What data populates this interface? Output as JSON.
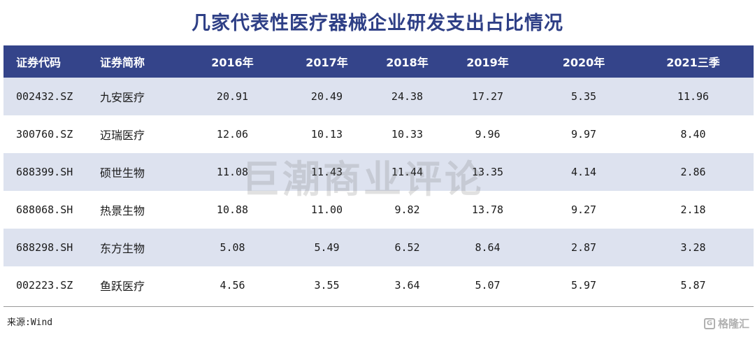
{
  "title": "几家代表性医疗器械企业研发支出占比情况",
  "watermark": "巨潮商业评论",
  "source": "来源:Wind",
  "corner_logo": {
    "mark": "G",
    "text": "格隆汇"
  },
  "chart_data": {
    "type": "table",
    "title": "几家代表性医疗器械企业研发支出占比情况",
    "columns": [
      "证券代码",
      "证券简称",
      "2016年",
      "2017年",
      "2018年",
      "2019年",
      "2020年",
      "2021三季"
    ],
    "rows": [
      [
        "002432.SZ",
        "九安医疗",
        "20.91",
        "20.49",
        "24.38",
        "17.27",
        "5.35",
        "11.96"
      ],
      [
        "300760.SZ",
        "迈瑞医疗",
        "12.06",
        "10.13",
        "10.33",
        "9.96",
        "9.97",
        "8.40"
      ],
      [
        "688399.SH",
        "硕世生物",
        "11.08",
        "11.43",
        "11.44",
        "13.35",
        "4.14",
        "2.86"
      ],
      [
        "688068.SH",
        "热景生物",
        "10.88",
        "11.00",
        "9.82",
        "13.78",
        "9.27",
        "2.18"
      ],
      [
        "688298.SH",
        "东方生物",
        "5.08",
        "5.49",
        "6.52",
        "8.64",
        "2.87",
        "3.28"
      ],
      [
        "002223.SZ",
        "鱼跃医疗",
        "4.56",
        "3.55",
        "3.64",
        "5.07",
        "5.97",
        "5.87"
      ]
    ]
  }
}
